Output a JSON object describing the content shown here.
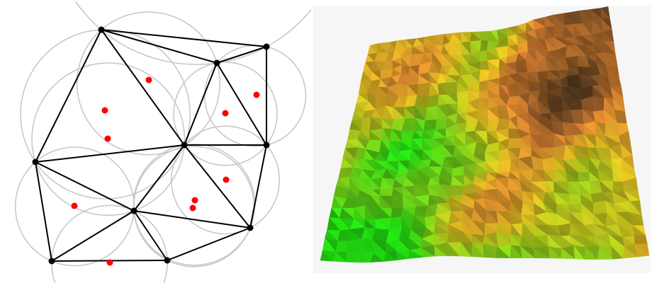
{
  "figure": {
    "left_panel": "delaunay-triangulation",
    "right_panel": "terrain-mesh-3d"
  },
  "colors": {
    "edge": "#000000",
    "vertex": "#000000",
    "circumcircle": "#c8c8c8",
    "circumcenter": "#ff0000",
    "terrain_low": "#22dd11",
    "terrain_mid": "#e0c020",
    "terrain_high": "#d88030",
    "terrain_peak": "#3a2a1a",
    "terrain_background": "#f6f6f6"
  }
}
